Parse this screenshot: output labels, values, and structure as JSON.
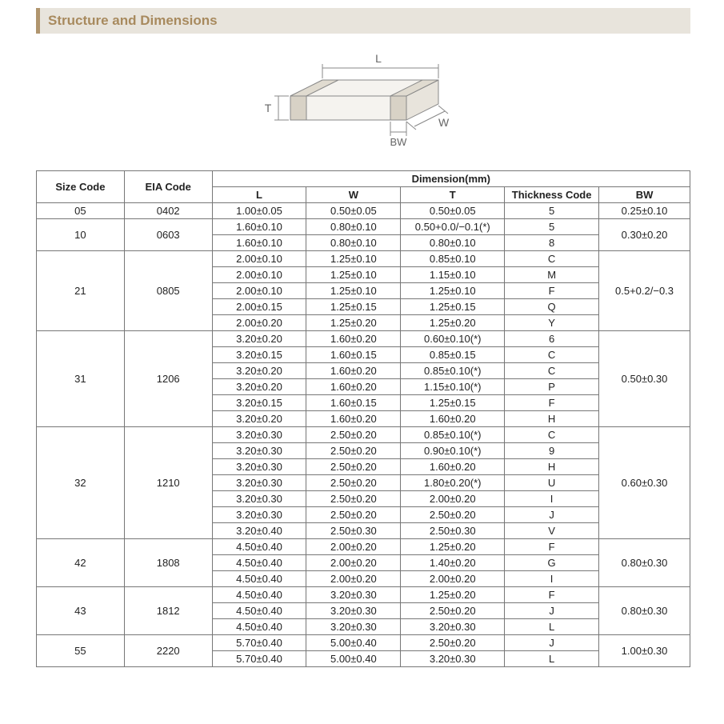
{
  "header": {
    "title": "Structure and Dimensions"
  },
  "diagram": {
    "labels": {
      "L": "L",
      "W": "W",
      "T": "T",
      "BW": "BW"
    },
    "stroke": "#888888",
    "fill": "#f5f3ef",
    "label_color": "#666666",
    "label_fontsize": 14
  },
  "table": {
    "header": {
      "size_code": "Size Code",
      "eia_code": "EIA Code",
      "dimension": "Dimension(mm)",
      "L": "L",
      "W": "W",
      "T": "T",
      "thickness_code": "Thickness Code",
      "BW": "BW"
    },
    "groups": [
      {
        "size": "05",
        "eia": "0402",
        "bw": "0.25±0.10",
        "rows": [
          {
            "L": "1.00±0.05",
            "W": "0.50±0.05",
            "T": "0.50±0.05",
            "tc": "5"
          }
        ]
      },
      {
        "size": "10",
        "eia": "0603",
        "bw": "0.30±0.20",
        "rows": [
          {
            "L": "1.60±0.10",
            "W": "0.80±0.10",
            "T": "0.50+0.0/−0.1(*)",
            "tc": "5"
          },
          {
            "L": "1.60±0.10",
            "W": "0.80±0.10",
            "T": "0.80±0.10",
            "tc": "8"
          }
        ]
      },
      {
        "size": "21",
        "eia": "0805",
        "bw": "0.5+0.2/−0.3",
        "rows": [
          {
            "L": "2.00±0.10",
            "W": "1.25±0.10",
            "T": "0.85±0.10",
            "tc": "C"
          },
          {
            "L": "2.00±0.10",
            "W": "1.25±0.10",
            "T": "1.15±0.10",
            "tc": "M"
          },
          {
            "L": "2.00±0.10",
            "W": "1.25±0.10",
            "T": "1.25±0.10",
            "tc": "F"
          },
          {
            "L": "2.00±0.15",
            "W": "1.25±0.15",
            "T": "1.25±0.15",
            "tc": "Q"
          },
          {
            "L": "2.00±0.20",
            "W": "1.25±0.20",
            "T": "1.25±0.20",
            "tc": "Y"
          }
        ]
      },
      {
        "size": "31",
        "eia": "1206",
        "bw": "0.50±0.30",
        "rows": [
          {
            "L": "3.20±0.20",
            "W": "1.60±0.20",
            "T": "0.60±0.10(*)",
            "tc": "6"
          },
          {
            "L": "3.20±0.15",
            "W": "1.60±0.15",
            "T": "0.85±0.15",
            "tc": "C"
          },
          {
            "L": "3.20±0.20",
            "W": "1.60±0.20",
            "T": "0.85±0.10(*)",
            "tc": "C"
          },
          {
            "L": "3.20±0.20",
            "W": "1.60±0.20",
            "T": "1.15±0.10(*)",
            "tc": "P"
          },
          {
            "L": "3.20±0.15",
            "W": "1.60±0.15",
            "T": "1.25±0.15",
            "tc": "F"
          },
          {
            "L": "3.20±0.20",
            "W": "1.60±0.20",
            "T": "1.60±0.20",
            "tc": "H"
          }
        ]
      },
      {
        "size": "32",
        "eia": "1210",
        "bw": "0.60±0.30",
        "rows": [
          {
            "L": "3.20±0.30",
            "W": "2.50±0.20",
            "T": "0.85±0.10(*)",
            "tc": "C"
          },
          {
            "L": "3.20±0.30",
            "W": "2.50±0.20",
            "T": "0.90±0.10(*)",
            "tc": "9"
          },
          {
            "L": "3.20±0.30",
            "W": "2.50±0.20",
            "T": "1.60±0.20",
            "tc": "H"
          },
          {
            "L": "3.20±0.30",
            "W": "2.50±0.20",
            "T": "1.80±0.20(*)",
            "tc": "U"
          },
          {
            "L": "3.20±0.30",
            "W": "2.50±0.20",
            "T": "2.00±0.20",
            "tc": "I"
          },
          {
            "L": "3.20±0.30",
            "W": "2.50±0.20",
            "T": "2.50±0.20",
            "tc": "J"
          },
          {
            "L": "3.20±0.40",
            "W": "2.50±0.30",
            "T": "2.50±0.30",
            "tc": "V"
          }
        ]
      },
      {
        "size": "42",
        "eia": "1808",
        "bw": "0.80±0.30",
        "rows": [
          {
            "L": "4.50±0.40",
            "W": "2.00±0.20",
            "T": "1.25±0.20",
            "tc": "F"
          },
          {
            "L": "4.50±0.40",
            "W": "2.00±0.20",
            "T": "1.40±0.20",
            "tc": "G"
          },
          {
            "L": "4.50±0.40",
            "W": "2.00±0.20",
            "T": "2.00±0.20",
            "tc": "I"
          }
        ]
      },
      {
        "size": "43",
        "eia": "1812",
        "bw": "0.80±0.30",
        "rows": [
          {
            "L": "4.50±0.40",
            "W": "3.20±0.30",
            "T": "1.25±0.20",
            "tc": "F"
          },
          {
            "L": "4.50±0.40",
            "W": "3.20±0.30",
            "T": "2.50±0.20",
            "tc": "J"
          },
          {
            "L": "4.50±0.40",
            "W": "3.20±0.30",
            "T": "3.20±0.30",
            "tc": "L"
          }
        ]
      },
      {
        "size": "55",
        "eia": "2220",
        "bw": "1.00±0.30",
        "rows": [
          {
            "L": "5.70±0.40",
            "W": "5.00±0.40",
            "T": "2.50±0.20",
            "tc": "J"
          },
          {
            "L": "5.70±0.40",
            "W": "5.00±0.40",
            "T": "3.20±0.30",
            "tc": "L"
          }
        ]
      }
    ]
  }
}
